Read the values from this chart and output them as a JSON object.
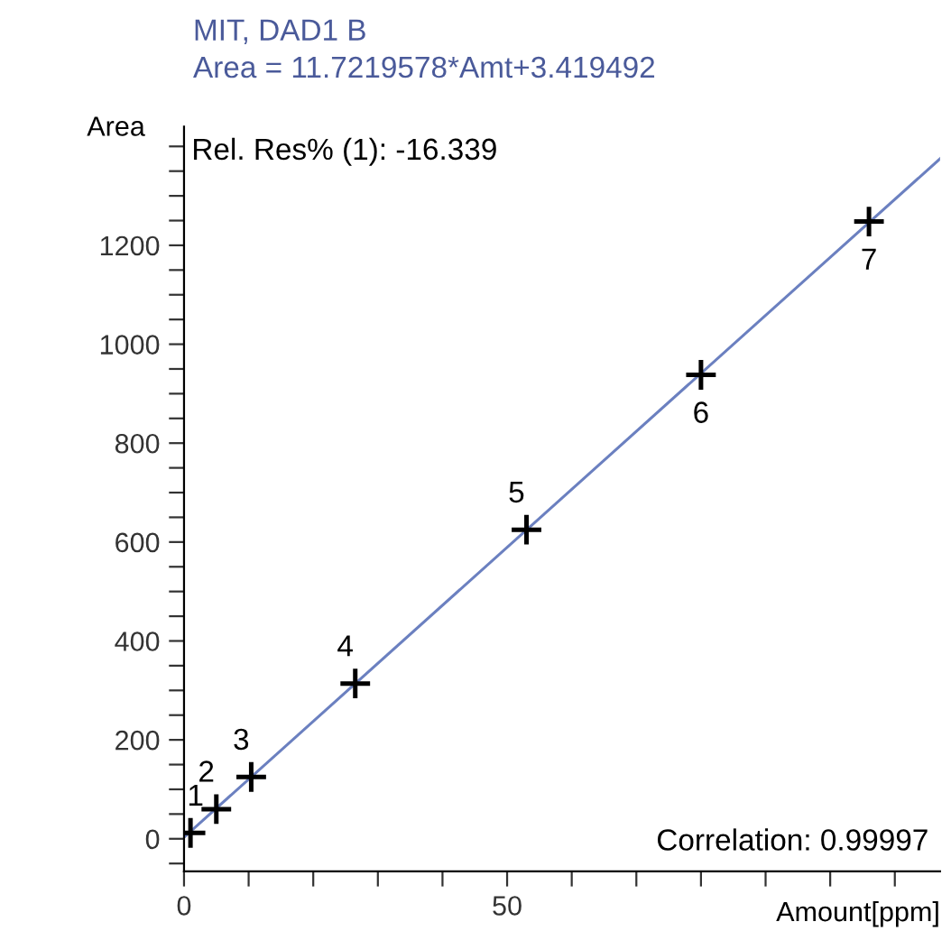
{
  "chart_data": {
    "type": "scatter",
    "title": "MIT, DAD1 B",
    "subtitle": "Area = 11.7219578*Amt+3.419492",
    "xlabel": "Amount[ppm]",
    "ylabel": "Area",
    "series": [
      {
        "color": "#000000",
        "marker": "cross",
        "x": [
          1,
          5,
          10.4,
          26.5,
          53,
          80,
          106
        ],
        "values": [
          12,
          60,
          125,
          314,
          625,
          938,
          1248
        ]
      },
      {
        "type": "line",
        "color": "#6b80c0",
        "marker": "none",
        "line_style": "solid",
        "x": [
          0,
          117
        ],
        "values": [
          3,
          1375
        ]
      }
    ],
    "annotations": [
      "Rel. Res% (1): -16.339",
      "Correlation: 0.99997",
      {
        "text": "1",
        "x": 1,
        "y": 12
      },
      {
        "text": "2",
        "x": 5,
        "y": 60
      },
      {
        "text": "3",
        "x": 10.4,
        "y": 125
      },
      {
        "text": "4",
        "x": 26.5,
        "y": 314
      },
      {
        "text": "5",
        "x": 53,
        "y": 625
      },
      {
        "text": "6",
        "x": 80,
        "y": 938
      },
      {
        "text": "7",
        "x": 106,
        "y": 1248
      }
    ],
    "xlim": [
      0,
      117
    ],
    "ylim": [
      -66,
      1440
    ],
    "xticks": [
      0,
      {
        "value": 10,
        "label": null
      },
      {
        "value": 20,
        "label": null
      },
      {
        "value": 30,
        "label": null
      },
      {
        "value": 40,
        "label": null
      },
      50,
      {
        "value": 60,
        "label": null
      },
      {
        "value": 70,
        "label": null
      },
      {
        "value": 80,
        "label": null
      },
      {
        "value": 90,
        "label": null
      },
      {
        "value": 100,
        "label": null
      },
      {
        "value": 110,
        "label": null
      }
    ],
    "yticks": [
      {
        "value": -50,
        "label": null
      },
      0,
      {
        "value": 50,
        "label": null
      },
      {
        "value": 100,
        "label": null
      },
      {
        "value": 150,
        "label": null
      },
      200,
      {
        "value": 250,
        "label": null
      },
      {
        "value": 300,
        "label": null
      },
      {
        "value": 350,
        "label": null
      },
      400,
      {
        "value": 450,
        "label": null
      },
      {
        "value": 500,
        "label": null
      },
      {
        "value": 550,
        "label": null
      },
      600,
      {
        "value": 650,
        "label": null
      },
      {
        "value": 700,
        "label": null
      },
      {
        "value": 750,
        "label": null
      },
      800,
      {
        "value": 850,
        "label": null
      },
      {
        "value": 900,
        "label": null
      },
      {
        "value": 950,
        "label": null
      },
      1000,
      {
        "value": 1050,
        "label": null
      },
      {
        "value": 1100,
        "label": null
      },
      {
        "value": 1150,
        "label": null
      },
      1200,
      {
        "value": 1250,
        "label": null
      },
      {
        "value": 1300,
        "label": null
      },
      {
        "value": 1350,
        "label": null
      },
      {
        "value": 1400,
        "label": null
      }
    ],
    "grid": false,
    "legend": false
  }
}
